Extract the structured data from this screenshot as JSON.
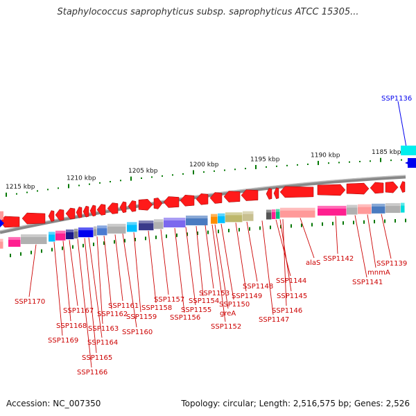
{
  "title": "Staphylococcus saprophyticus subsp. saprophyticus ATCC 15305...",
  "footer": {
    "accession": "Accession: NC_007350",
    "summary": "Topology: circular; Length: 2,516,575 bp; Genes: 2,526"
  },
  "colors": {
    "gene_red": "#ff1a1a",
    "label_red": "#cc0000",
    "highlight_blue": "#0000ee",
    "tick_green": "#007700",
    "backbone": "#888888"
  },
  "ruler_labels": [
    "1215 kbp",
    "1210 kbp",
    "1205 kbp",
    "1200 kbp",
    "1195 kbp",
    "1190 kbp",
    "1185 kbp"
  ],
  "highlighted_gene": "SSP1136",
  "gene_labels": [
    "SSP1139",
    "mnmA",
    "SSP1141",
    "SSP1142",
    "alaS",
    "SSP1144",
    "SSP1145",
    "SSP1146",
    "SSP1147",
    "SSP1148",
    "SSP1149",
    "SSP1150",
    "greA",
    "SSP1152",
    "SSP1153",
    "SSP1154",
    "SSP1155",
    "SSP1156",
    "SSP1157",
    "SSP1158",
    "SSP1159",
    "SSP1160",
    "SSP1161",
    "SSP1162",
    "SSP1163",
    "SSP1164",
    "SSP1165",
    "SSP1166",
    "SSP1167",
    "SSP1168",
    "SSP1169",
    "SSP1170"
  ]
}
